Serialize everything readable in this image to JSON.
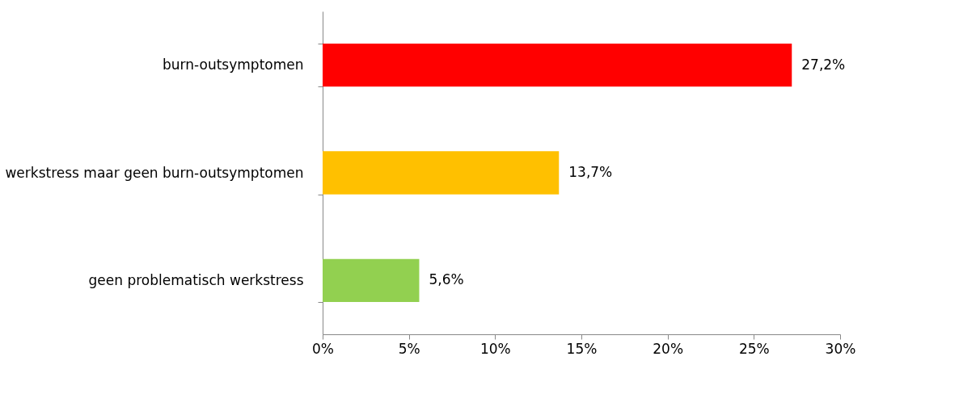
{
  "chart_data": {
    "type": "bar",
    "orientation": "horizontal",
    "categories": [
      "burn-outsymptomen",
      "werkstress maar geen burn-outsymptomen",
      "geen problematisch werkstress"
    ],
    "values": [
      27.2,
      13.7,
      5.6
    ],
    "colors": [
      "#ff0000",
      "#ffc000",
      "#92d050"
    ],
    "value_labels": [
      "27,2%",
      "13,7%",
      "5,6%"
    ],
    "xlim": [
      0,
      30
    ],
    "xticks": [
      {
        "value": 0,
        "label": "0%"
      },
      {
        "value": 5,
        "label": "5%"
      },
      {
        "value": 10,
        "label": "10%"
      },
      {
        "value": 15,
        "label": "15%"
      },
      {
        "value": 20,
        "label": "20%"
      },
      {
        "value": 25,
        "label": "25%"
      },
      {
        "value": 30,
        "label": "30%"
      }
    ],
    "grid": false,
    "legend": false
  }
}
